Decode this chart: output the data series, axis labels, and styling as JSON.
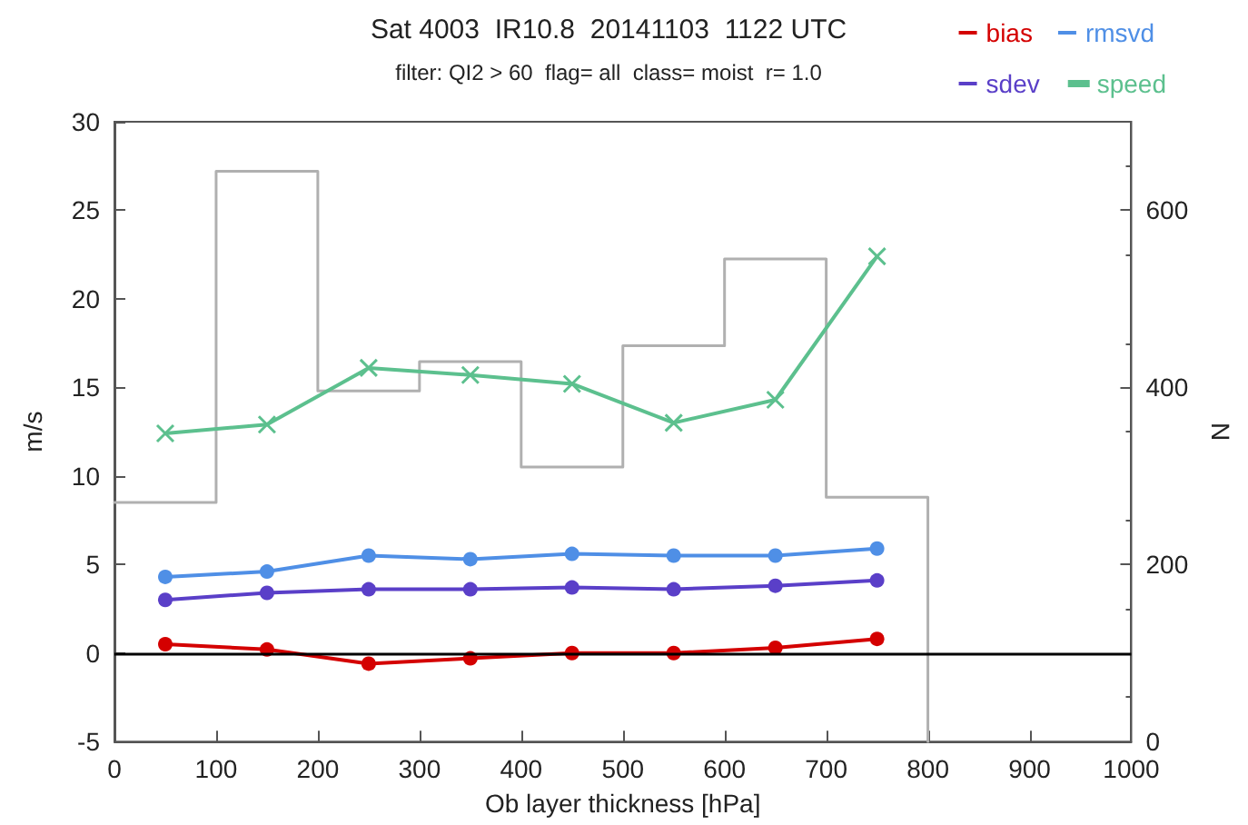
{
  "chart_data": {
    "type": "line",
    "title": "Sat 4003  IR10.8  20141103  1122 UTC",
    "subtitle": "filter: QI2 > 60  flag= all  class= moist  r= 1.0",
    "xlabel": "Ob layer thickness [hPa]",
    "ylabel": "m/s",
    "y2label": "N",
    "x": [
      50,
      150,
      250,
      350,
      450,
      550,
      650,
      750
    ],
    "series": [
      {
        "name": "bias",
        "color": "#d40000",
        "marker": "circle",
        "values": [
          0.5,
          0.2,
          -0.6,
          -0.3,
          0,
          0,
          0.3,
          0.8
        ]
      },
      {
        "name": "rmsvd",
        "color": "#4f8fe6",
        "marker": "circle",
        "values": [
          4.3,
          4.6,
          5.5,
          5.3,
          5.6,
          5.5,
          5.5,
          5.9
        ]
      },
      {
        "name": "sdev",
        "color": "#5a3fc8",
        "marker": "circle",
        "values": [
          3.0,
          3.4,
          3.6,
          3.6,
          3.7,
          3.6,
          3.8,
          4.1
        ]
      },
      {
        "name": "speed",
        "color": "#5cc08e",
        "marker": "cross",
        "values": [
          12.4,
          12.9,
          16.1,
          15.7,
          15.2,
          13.0,
          14.3,
          22.4
        ]
      },
      {
        "type": "step",
        "axis": "y2",
        "color": "#b0b0b0",
        "marker": "none",
        "x": [
          0,
          100,
          200,
          300,
          400,
          500,
          600,
          700,
          800
        ],
        "values": [
          270,
          644,
          396,
          429,
          310,
          447,
          545,
          276,
          0
        ]
      }
    ],
    "xlim": [
      0,
      1000
    ],
    "xticks": [
      0,
      100,
      200,
      300,
      400,
      500,
      600,
      700,
      800,
      900,
      1000
    ],
    "ylim": [
      -5,
      30
    ],
    "yticks": [
      -5,
      0,
      5,
      10,
      15,
      20,
      25,
      30
    ],
    "y2lim": [
      0,
      700
    ],
    "y2ticks": [
      0,
      200,
      400,
      600
    ],
    "ref_lines": [
      {
        "axis": "y",
        "value": 0,
        "color": "#000000"
      }
    ],
    "grid": false,
    "legend": "top right"
  }
}
